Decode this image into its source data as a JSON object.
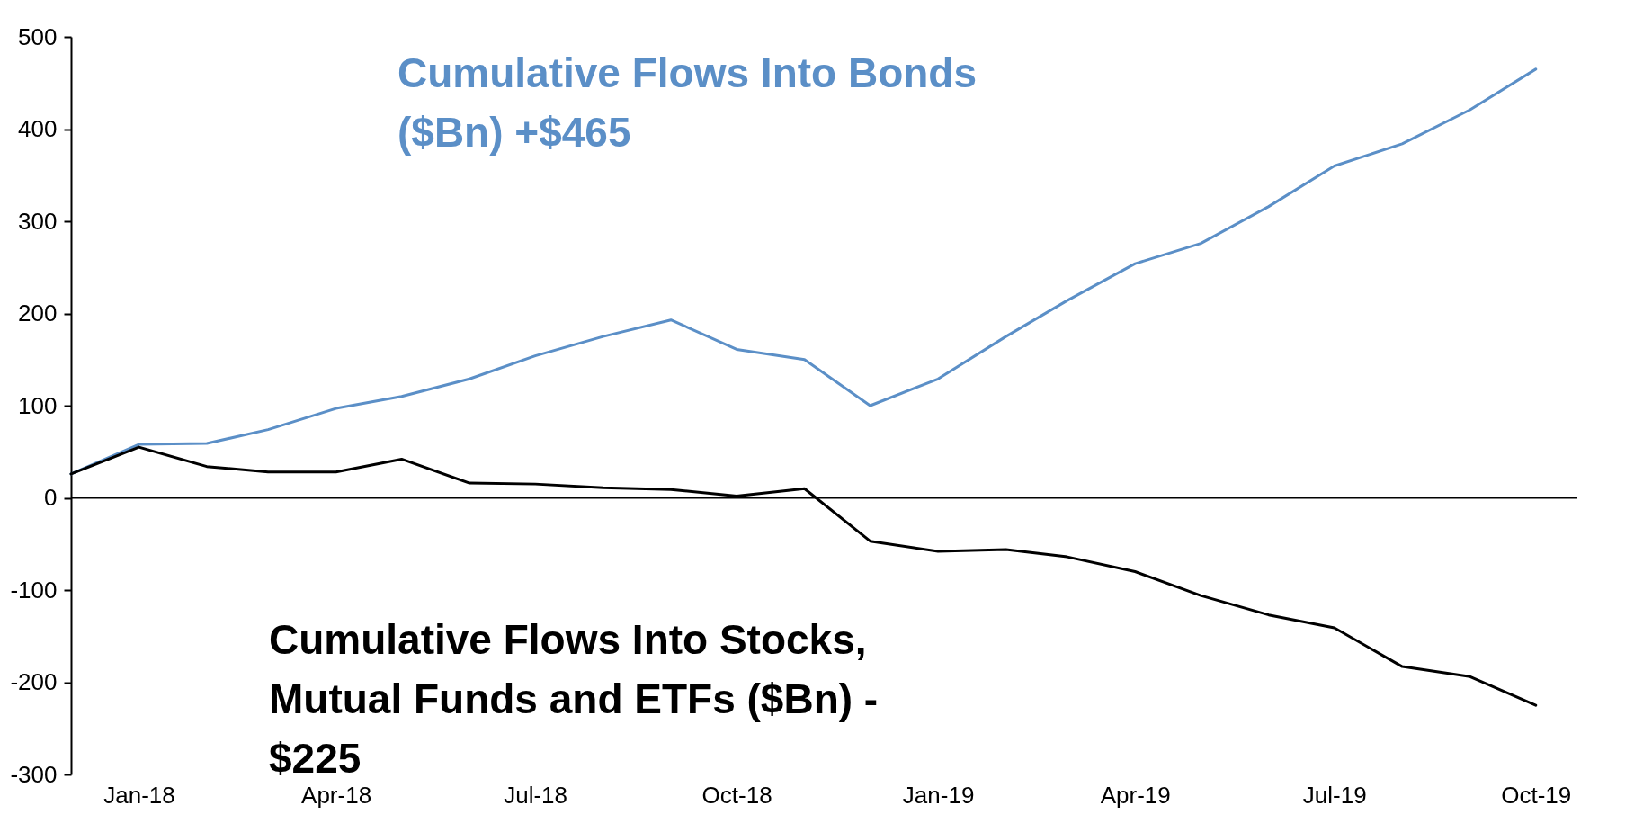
{
  "chart_data": {
    "type": "line",
    "x": [
      "2017-12",
      "2018-01",
      "2018-02",
      "2018-03",
      "2018-04",
      "2018-05",
      "2018-06",
      "2018-07",
      "2018-08",
      "2018-09",
      "2018-10",
      "2018-11",
      "2018-12",
      "2019-01",
      "2019-02",
      "2019-03",
      "2019-04",
      "2019-05",
      "2019-06",
      "2019-07",
      "2019-08",
      "2019-09",
      "2019-10"
    ],
    "series": [
      {
        "name": "Cumulative Flows Into Bonds ($Bn) +$465",
        "color": "#5b8fc7",
        "values": [
          26,
          58,
          59,
          74,
          97,
          110,
          129,
          154,
          175,
          193,
          161,
          150,
          100,
          129,
          175,
          214,
          254,
          276,
          316,
          360,
          384,
          421,
          465
        ]
      },
      {
        "name": "Cumulative Flows Into Stocks, Mutual Funds and ETFs ($Bn) - $225",
        "color": "#000000",
        "values": [
          26,
          55,
          34,
          28,
          28,
          42,
          16,
          15,
          11,
          9,
          2,
          10,
          -47,
          -58,
          -56,
          -64,
          -80,
          -106,
          -127,
          -141,
          -183,
          -194,
          -225
        ]
      }
    ],
    "xlim": [
      "2017-12-01",
      "2019-10-20"
    ],
    "xticks": [
      {
        "value": "2018-01",
        "label": "Jan-18"
      },
      {
        "value": "2018-04",
        "label": "Apr-18"
      },
      {
        "value": "2018-07",
        "label": "Jul-18"
      },
      {
        "value": "2018-10",
        "label": "Oct-18"
      },
      {
        "value": "2019-01",
        "label": "Jan-19"
      },
      {
        "value": "2019-04",
        "label": "Apr-19"
      },
      {
        "value": "2019-07",
        "label": "Jul-19"
      },
      {
        "value": "2019-10",
        "label": "Oct-19"
      }
    ],
    "ylim": [
      -300,
      500
    ],
    "yticks": [
      -300,
      -200,
      -100,
      0,
      100,
      200,
      300,
      400,
      500
    ],
    "ref_lines": [
      {
        "axis": "y",
        "value": 0
      }
    ],
    "grid": false
  }
}
